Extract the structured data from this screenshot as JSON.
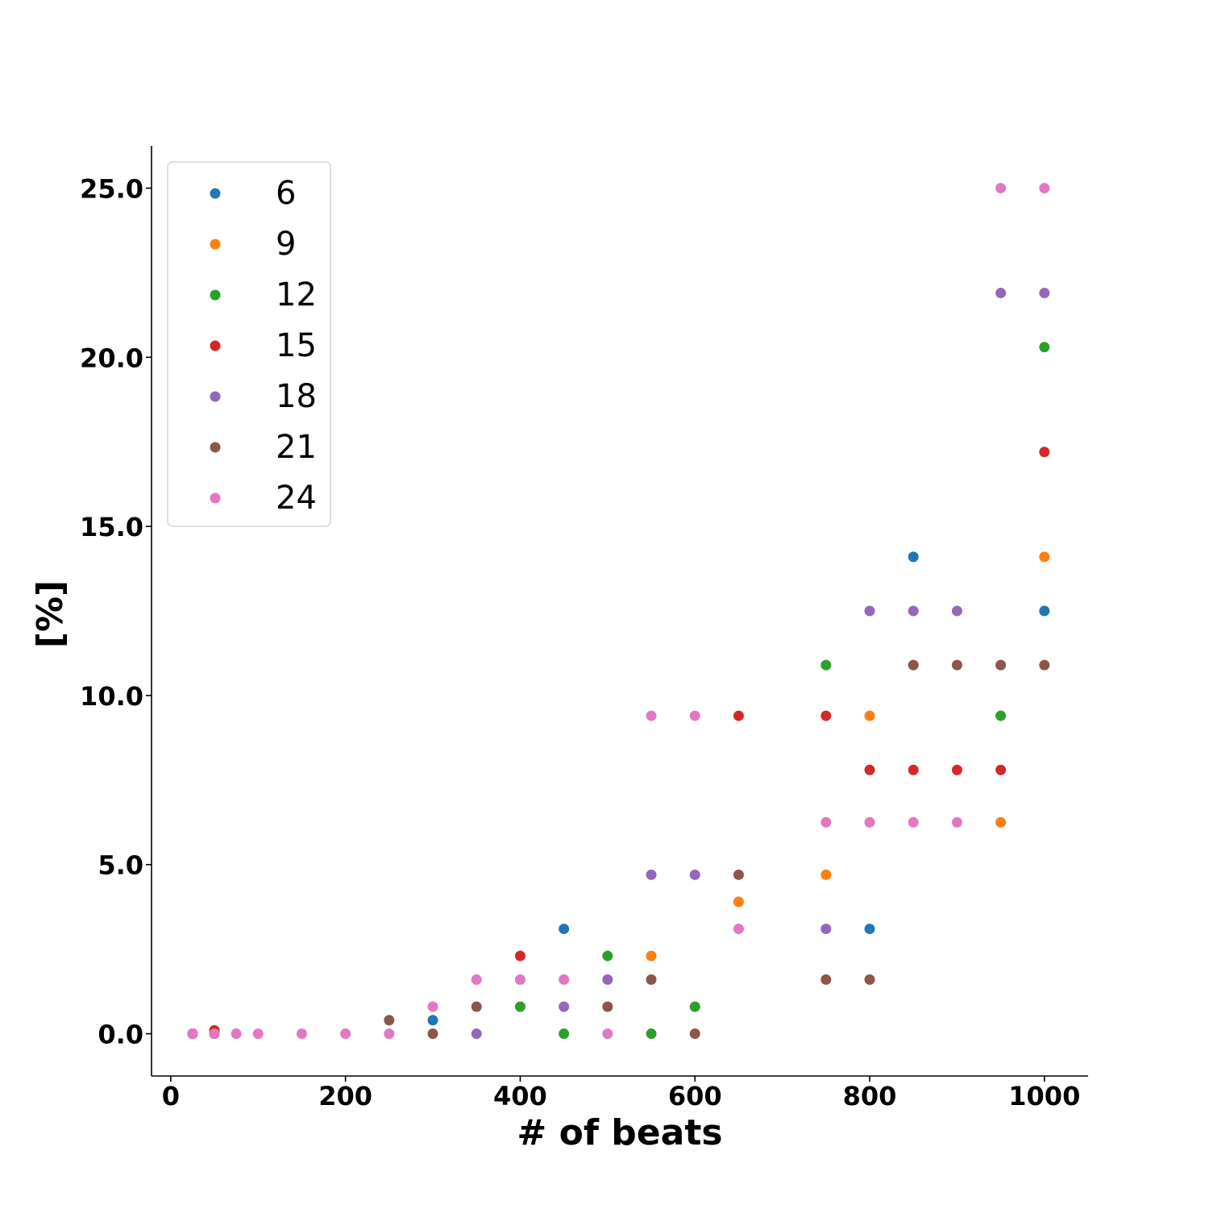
{
  "chart_data": {
    "type": "scatter",
    "xlabel": "# of beats",
    "ylabel": "[%]",
    "xlim": [
      -22,
      1050
    ],
    "ylim": [
      -1.25,
      26.25
    ],
    "xticks": [
      0,
      200,
      400,
      600,
      800,
      1000
    ],
    "xtick_labels": [
      "0",
      "200",
      "400",
      "600",
      "800",
      "1000"
    ],
    "yticks": [
      0,
      5,
      10,
      15,
      20,
      25
    ],
    "ytick_labels": [
      "0.0",
      "5.0",
      "10.0",
      "15.0",
      "20.0",
      "25.0"
    ],
    "grid": false,
    "legend_position": "top-left",
    "series": [
      {
        "name": "6",
        "color": "#1f77b4",
        "points": [
          [
            25,
            0
          ],
          [
            50,
            0
          ],
          [
            300,
            0.4
          ],
          [
            450,
            3.1
          ],
          [
            800,
            3.1
          ],
          [
            850,
            14.1
          ],
          [
            1000,
            12.5
          ]
        ]
      },
      {
        "name": "9",
        "color": "#ff7f0e",
        "points": [
          [
            25,
            0
          ],
          [
            50,
            0
          ],
          [
            550,
            2.3
          ],
          [
            650,
            3.9
          ],
          [
            750,
            4.7
          ],
          [
            800,
            9.4
          ],
          [
            950,
            6.25
          ],
          [
            1000,
            14.1
          ]
        ]
      },
      {
        "name": "12",
        "color": "#2ca02c",
        "points": [
          [
            25,
            0
          ],
          [
            50,
            0
          ],
          [
            400,
            0.8
          ],
          [
            450,
            0
          ],
          [
            500,
            2.3
          ],
          [
            550,
            0
          ],
          [
            600,
            0.8
          ],
          [
            750,
            10.9
          ],
          [
            950,
            9.4
          ],
          [
            1000,
            20.3
          ]
        ]
      },
      {
        "name": "15",
        "color": "#d62728",
        "points": [
          [
            25,
            0
          ],
          [
            50,
            0.1
          ],
          [
            400,
            2.3
          ],
          [
            650,
            9.4
          ],
          [
            750,
            9.4
          ],
          [
            800,
            7.8
          ],
          [
            850,
            7.8
          ],
          [
            900,
            7.8
          ],
          [
            950,
            7.8
          ],
          [
            1000,
            17.2
          ]
        ]
      },
      {
        "name": "18",
        "color": "#9467bd",
        "points": [
          [
            25,
            0
          ],
          [
            50,
            0
          ],
          [
            350,
            0
          ],
          [
            450,
            0.8
          ],
          [
            500,
            1.6
          ],
          [
            550,
            4.7
          ],
          [
            600,
            4.7
          ],
          [
            750,
            3.1
          ],
          [
            800,
            12.5
          ],
          [
            850,
            12.5
          ],
          [
            900,
            12.5
          ],
          [
            950,
            21.9
          ],
          [
            1000,
            21.9
          ]
        ]
      },
      {
        "name": "21",
        "color": "#8c564b",
        "points": [
          [
            25,
            0
          ],
          [
            50,
            0
          ],
          [
            250,
            0.4
          ],
          [
            300,
            0
          ],
          [
            350,
            0.8
          ],
          [
            500,
            0.8
          ],
          [
            550,
            1.6
          ],
          [
            600,
            0
          ],
          [
            650,
            4.7
          ],
          [
            750,
            1.6
          ],
          [
            800,
            1.6
          ],
          [
            850,
            10.9
          ],
          [
            900,
            10.9
          ],
          [
            950,
            10.9
          ],
          [
            1000,
            10.9
          ]
        ]
      },
      {
        "name": "24",
        "color": "#e377c2",
        "points": [
          [
            25,
            0
          ],
          [
            50,
            0
          ],
          [
            75,
            0
          ],
          [
            100,
            0
          ],
          [
            150,
            0
          ],
          [
            200,
            0
          ],
          [
            250,
            0
          ],
          [
            300,
            0.8
          ],
          [
            350,
            1.6
          ],
          [
            400,
            1.6
          ],
          [
            450,
            1.6
          ],
          [
            500,
            0
          ],
          [
            550,
            9.4
          ],
          [
            600,
            9.4
          ],
          [
            650,
            3.1
          ],
          [
            750,
            6.25
          ],
          [
            800,
            6.25
          ],
          [
            850,
            6.25
          ],
          [
            900,
            6.25
          ],
          [
            950,
            25
          ],
          [
            1000,
            25
          ]
        ]
      }
    ]
  }
}
